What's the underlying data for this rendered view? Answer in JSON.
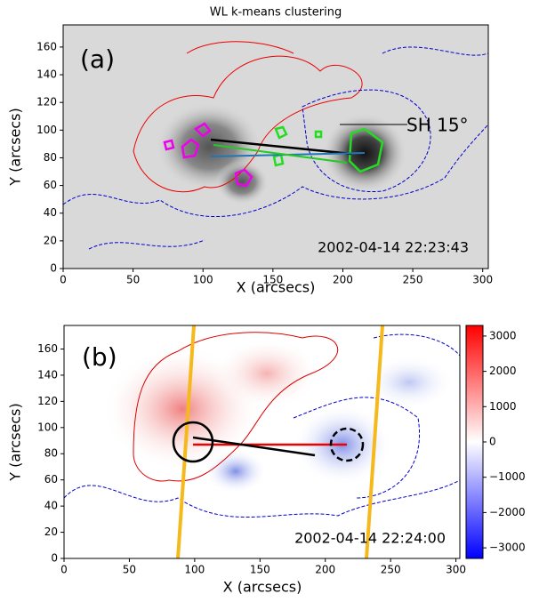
{
  "chart_data": [
    {
      "type": "image",
      "title": "WL k-means clustering",
      "xlabel": "X (arcsecs)",
      "ylabel": "Y (arcsecs)",
      "xlim": [
        0,
        304
      ],
      "ylim": [
        0,
        176
      ],
      "xticks": [
        0,
        50,
        100,
        150,
        200,
        250,
        300
      ],
      "yticks": [
        0,
        20,
        40,
        60,
        80,
        100,
        120,
        140,
        160
      ],
      "annotations": [
        "(a)",
        "SH 15°",
        "2002-04-14 22:23:43"
      ]
    },
    {
      "type": "image",
      "xlabel": "X (arcsecs)",
      "ylabel": "Y (arcsecs)",
      "xlim": [
        0,
        303
      ],
      "ylim": [
        0,
        178
      ],
      "xticks": [
        0,
        50,
        100,
        150,
        200,
        250,
        300
      ],
      "yticks": [
        0,
        20,
        40,
        60,
        80,
        100,
        120,
        140,
        160
      ],
      "annotations": [
        "(b)",
        "2002-04-14 22:24:00"
      ],
      "colorbar": {
        "lim": [
          -3300,
          3300
        ],
        "ticks": [
          {
            "value": -3000,
            "label": "−3000"
          },
          {
            "value": -2000,
            "label": "−2000"
          },
          {
            "value": -1000,
            "label": "−1000"
          },
          0,
          1000,
          2000,
          3000
        ]
      }
    }
  ]
}
